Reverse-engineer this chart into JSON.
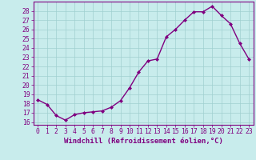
{
  "x": [
    0,
    1,
    2,
    3,
    4,
    5,
    6,
    7,
    8,
    9,
    10,
    11,
    12,
    13,
    14,
    15,
    16,
    17,
    18,
    19,
    20,
    21,
    22,
    23
  ],
  "y": [
    18.4,
    17.9,
    16.7,
    16.2,
    16.8,
    17.0,
    17.1,
    17.2,
    17.6,
    18.3,
    19.7,
    21.4,
    22.6,
    22.8,
    25.2,
    26.0,
    27.0,
    27.9,
    27.9,
    28.5,
    27.5,
    26.6,
    24.5,
    22.8
  ],
  "line_color": "#800080",
  "marker": "D",
  "marker_size": 2.0,
  "line_width": 1.0,
  "bg_color": "#c8ecec",
  "grid_color": "#a0d0d0",
  "xlabel": "Windchill (Refroidissement éolien,°C)",
  "xlabel_fontsize": 6.5,
  "xlabel_color": "#800080",
  "ylabel_ticks": [
    16,
    17,
    18,
    19,
    20,
    21,
    22,
    23,
    24,
    25,
    26,
    27,
    28
  ],
  "ylim": [
    15.7,
    29.0
  ],
  "xlim": [
    -0.5,
    23.5
  ],
  "tick_fontsize": 5.8,
  "tick_color": "#800080",
  "spine_color": "#800080",
  "axis_bg": "#c8ecec"
}
